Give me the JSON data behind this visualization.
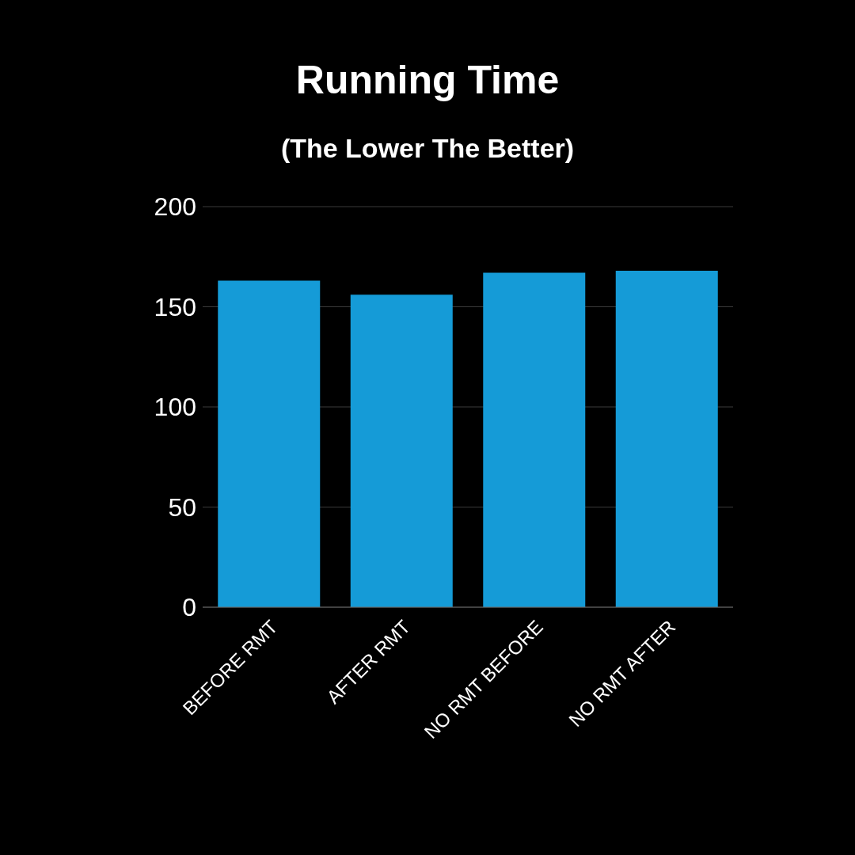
{
  "chart_data": {
    "type": "bar",
    "title": "Running Time",
    "subtitle": "(The Lower The Better)",
    "categories": [
      "BEFORE RMT",
      "AFTER RMT",
      "NO RMT BEFORE",
      "NO RMT AFTER"
    ],
    "values": [
      163,
      156,
      167,
      168
    ],
    "color": "#159bd7",
    "ylim": [
      0,
      200
    ],
    "yticks": [
      0,
      50,
      100,
      150,
      200
    ],
    "grid": "y"
  }
}
